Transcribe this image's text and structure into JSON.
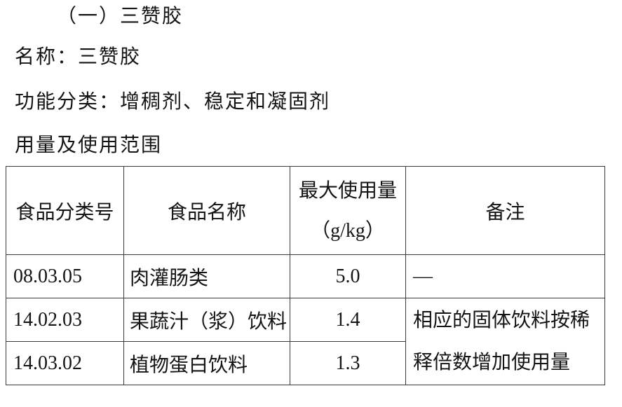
{
  "doc": {
    "section_title": "（一）三赞胶",
    "name_line": "名称：三赞胶",
    "function_line": "功能分类：增稠剂、稳定和凝固剂",
    "usage_line": "用量及使用范围"
  },
  "table": {
    "headers": {
      "category_code": "食品分类号",
      "food_name": "食品名称",
      "max_usage_line1": "最大使用量",
      "max_usage_line2": "（g/kg）",
      "remark": "备注"
    },
    "rows": [
      {
        "code": "08.03.05",
        "food": "肉灌肠类",
        "max": "5.0",
        "remark": "—"
      },
      {
        "code": "14.02.03",
        "food": "果蔬汁（浆）饮料",
        "max": "1.4"
      },
      {
        "code": "14.03.02",
        "food": "植物蛋白饮料",
        "max": "1.3"
      }
    ],
    "merged_remark": "相应的固体饮料按稀释倍数增加使用量"
  },
  "colors": {
    "background": "#ffffff",
    "text": "#141414",
    "table_border": "#3b3b3b"
  }
}
